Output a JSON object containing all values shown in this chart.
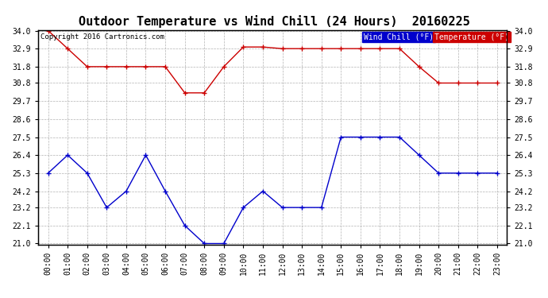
{
  "title": "Outdoor Temperature vs Wind Chill (24 Hours)  20160225",
  "copyright": "Copyright 2016 Cartronics.com",
  "hours": [
    "00:00",
    "01:00",
    "02:00",
    "03:00",
    "04:00",
    "05:00",
    "06:00",
    "07:00",
    "08:00",
    "09:00",
    "10:00",
    "11:00",
    "12:00",
    "13:00",
    "14:00",
    "15:00",
    "16:00",
    "17:00",
    "18:00",
    "19:00",
    "20:00",
    "21:00",
    "22:00",
    "23:00"
  ],
  "temperature": [
    34.0,
    32.9,
    31.8,
    31.8,
    31.8,
    31.8,
    31.8,
    30.2,
    30.2,
    31.8,
    33.0,
    33.0,
    32.9,
    32.9,
    32.9,
    32.9,
    32.9,
    32.9,
    32.9,
    31.8,
    30.8,
    30.8,
    30.8,
    30.8
  ],
  "wind_chill": [
    25.3,
    26.4,
    25.3,
    23.2,
    24.2,
    26.4,
    24.2,
    22.1,
    21.0,
    21.0,
    23.2,
    24.2,
    23.2,
    23.2,
    23.2,
    27.5,
    27.5,
    27.5,
    27.5,
    26.4,
    25.3,
    25.3,
    25.3,
    25.3
  ],
  "temp_color": "#cc0000",
  "wind_chill_color": "#0000cc",
  "background_color": "#ffffff",
  "grid_color": "#aaaaaa",
  "ylim_min": 21.0,
  "ylim_max": 34.0,
  "yticks": [
    21.0,
    22.1,
    23.2,
    24.2,
    25.3,
    26.4,
    27.5,
    28.6,
    29.7,
    30.8,
    31.8,
    32.9,
    34.0
  ],
  "title_fontsize": 11,
  "tick_fontsize": 7,
  "axis_label_fontsize": 7,
  "legend_wind_label": "Wind Chill (°F)",
  "legend_temp_label": "Temperature (°F)",
  "legend_wind_bg": "#0000cc",
  "legend_temp_bg": "#cc0000"
}
